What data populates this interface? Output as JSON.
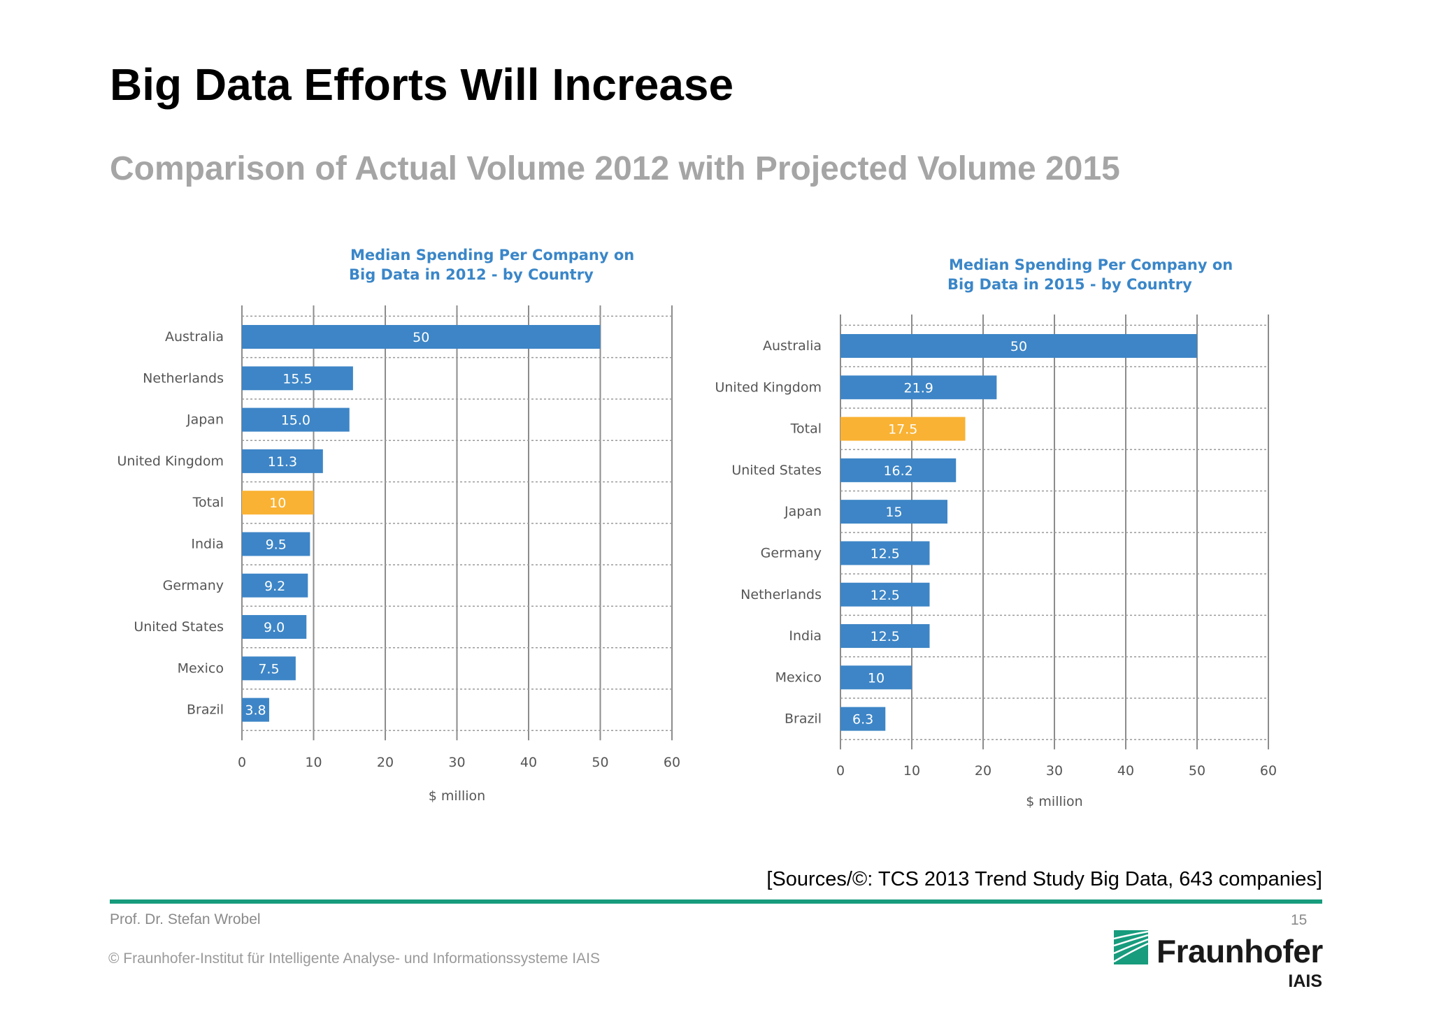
{
  "slide": {
    "title": "Big Data Efforts Will Increase",
    "subtitle": "Comparison of Actual Volume 2012 with Projected Volume 2015",
    "sources": "[Sources/©: TCS 2013 Trend Study Big Data, 643 companies]",
    "author": "Prof. Dr. Stefan Wrobel",
    "page_number": "15",
    "copyright": "© Fraunhofer-Institut für Intelligente Analyse- und Informationssysteme IAIS",
    "logo": {
      "name": "Fraunhofer",
      "sub": "IAIS",
      "color": "#179c7d"
    },
    "rule_color": "#179c7d"
  },
  "chart_data": [
    {
      "type": "bar",
      "orientation": "horizontal",
      "title": [
        "Median Spending Per Company on",
        "Big Data in 2012 - by Country"
      ],
      "categories": [
        "Australia",
        "Netherlands",
        "Japan",
        "United Kingdom",
        "Total",
        "India",
        "Germany",
        "United States",
        "Mexico",
        "Brazil"
      ],
      "values": [
        50,
        15.5,
        15.0,
        11.3,
        10,
        9.5,
        9.2,
        9.0,
        7.5,
        3.8
      ],
      "value_labels": [
        "50",
        "15.5",
        "15.0",
        "11.3",
        "10",
        "9.5",
        "9.2",
        "9.0",
        "7.5",
        "3.8"
      ],
      "highlight": "Total",
      "xlabel": "$ million",
      "xlim": [
        0,
        60
      ],
      "xticks": [
        "0",
        "10",
        "20",
        "30",
        "40",
        "50",
        "60"
      ],
      "grid": true,
      "colors": {
        "bar": "#3d85c6",
        "highlight": "#f9b233"
      }
    },
    {
      "type": "bar",
      "orientation": "horizontal",
      "title": [
        "Median Spending Per Company on",
        "Big Data in 2015 - by Country"
      ],
      "categories": [
        "Australia",
        "United Kingdom",
        "Total",
        "United States",
        "Japan",
        "Germany",
        "Netherlands",
        "India",
        "Mexico",
        "Brazil"
      ],
      "values": [
        50,
        21.9,
        17.5,
        16.2,
        15,
        12.5,
        12.5,
        12.5,
        10,
        6.3
      ],
      "value_labels": [
        "50",
        "21.9",
        "17.5",
        "16.2",
        "15",
        "12.5",
        "12.5",
        "12.5",
        "10",
        "6.3"
      ],
      "highlight": "Total",
      "xlabel": "$ million",
      "xlim": [
        0,
        60
      ],
      "xticks": [
        "0",
        "10",
        "20",
        "30",
        "40",
        "50",
        "60"
      ],
      "grid": true,
      "colors": {
        "bar": "#3d85c6",
        "highlight": "#f9b233"
      }
    }
  ]
}
